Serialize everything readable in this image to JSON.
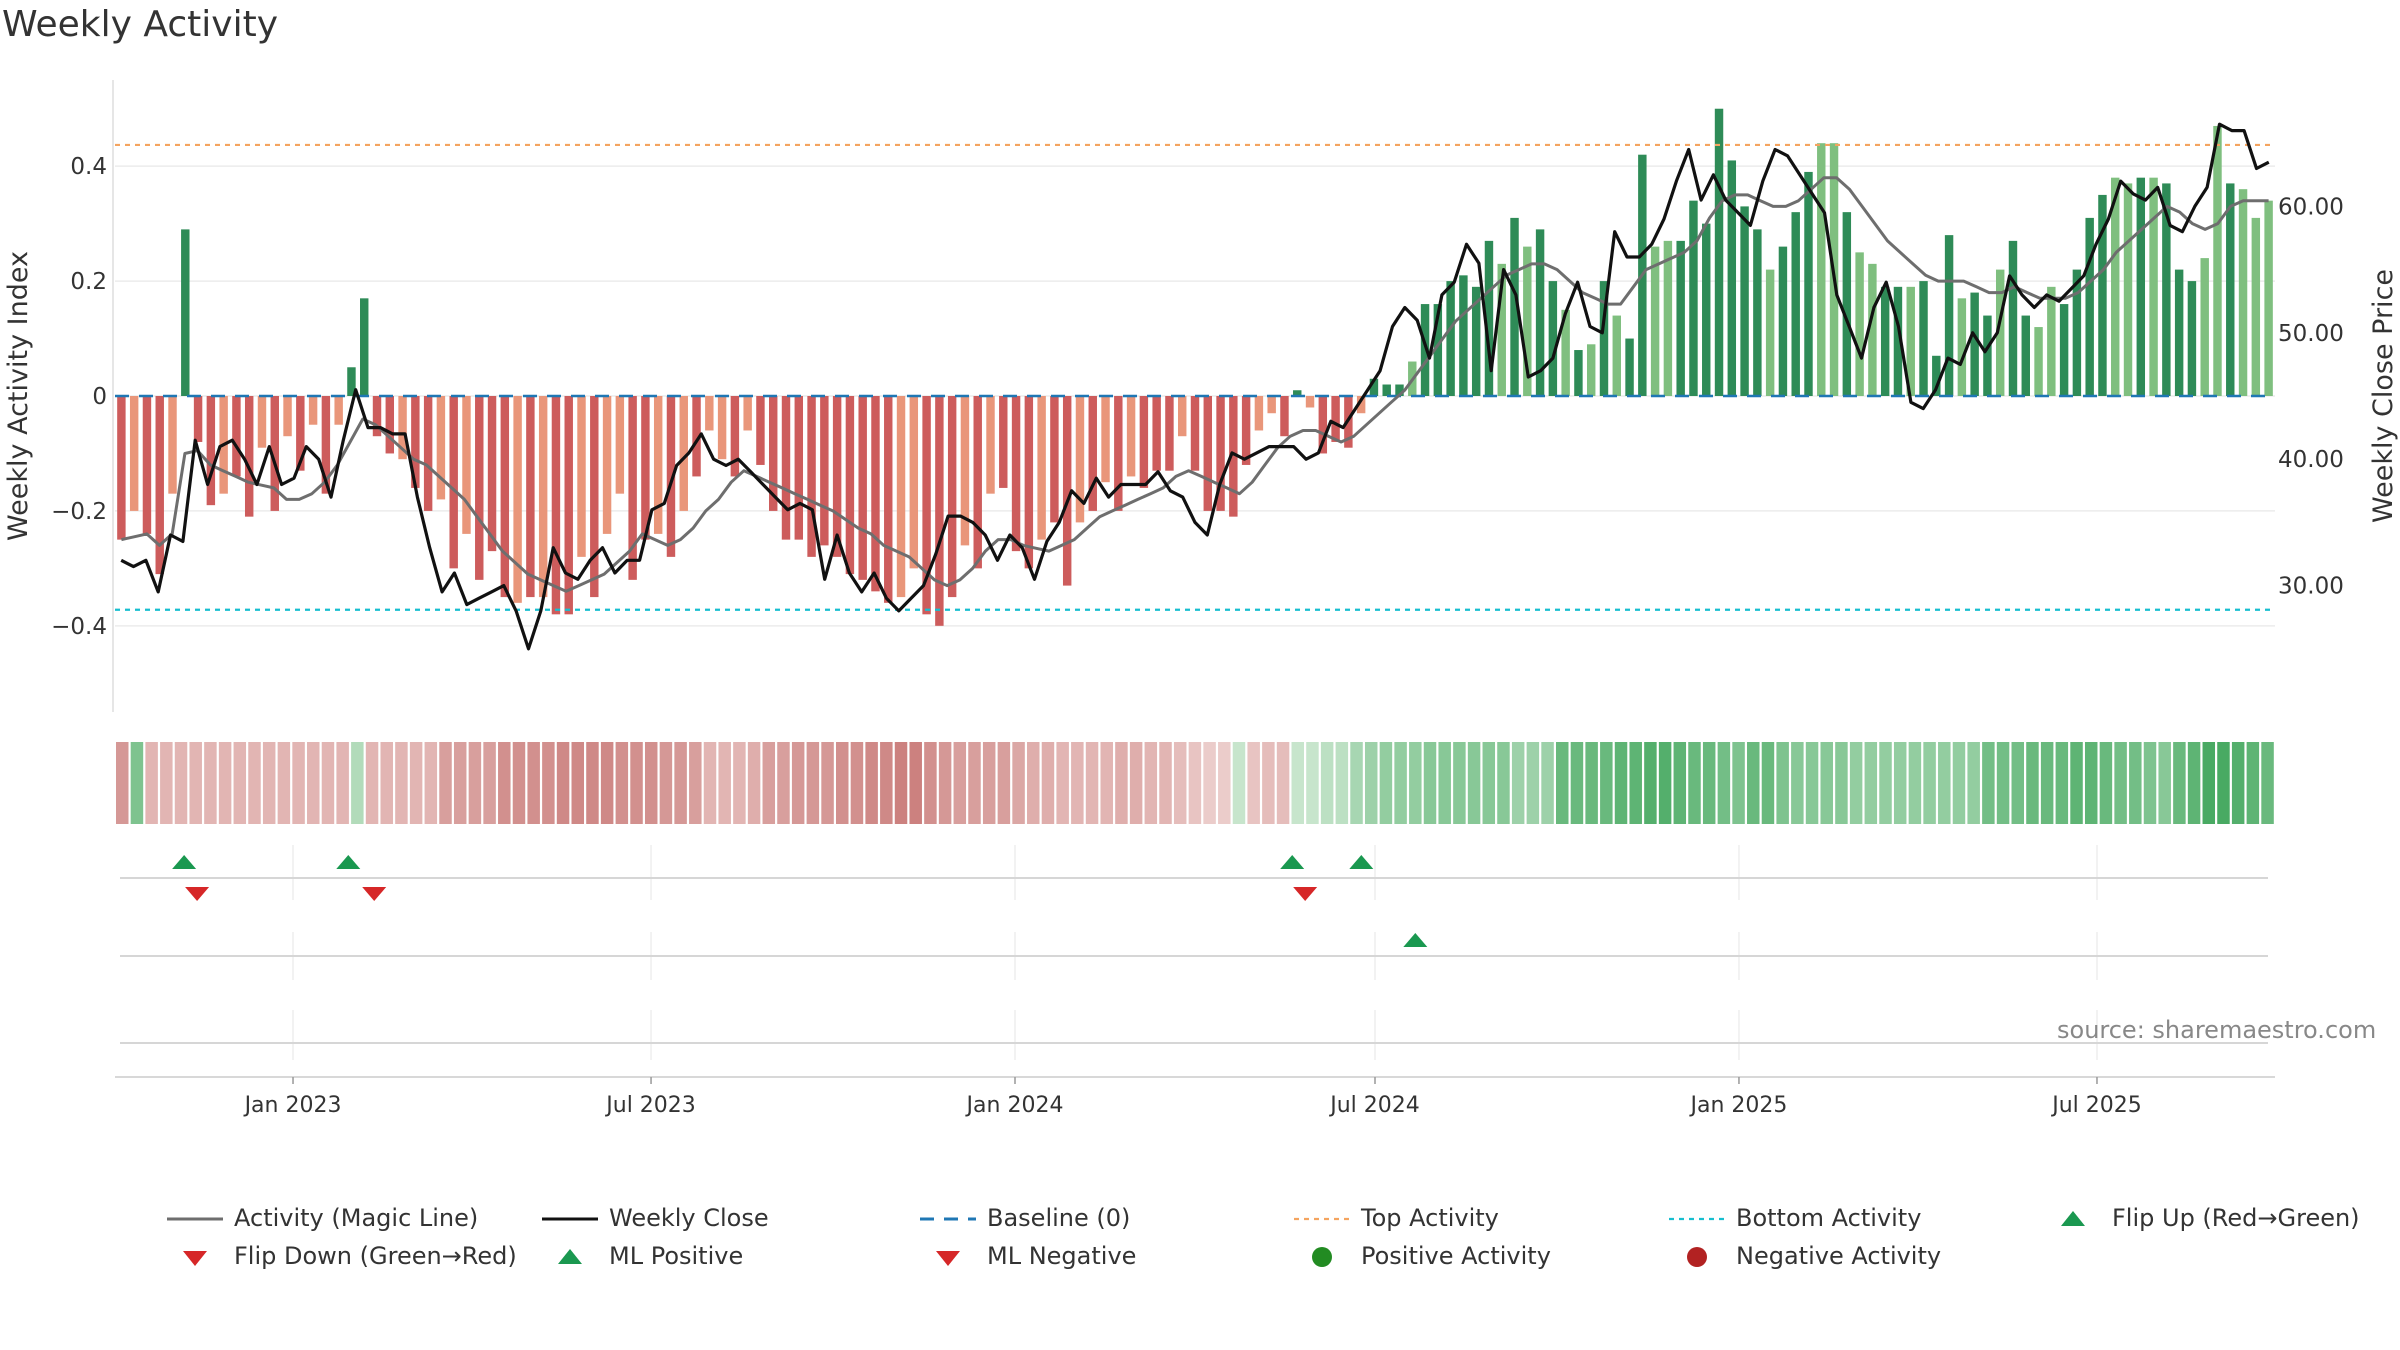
{
  "chart_data": {
    "type": "bar",
    "title": "Weekly Activity",
    "ylabel": "Weekly Activity Index",
    "y2label": "Weekly Close Price",
    "ylim": [
      -0.55,
      0.55
    ],
    "y2lim": [
      20.0,
      70.0
    ],
    "yticks": [
      {
        "value": 0.4,
        "label": "0.4"
      },
      {
        "value": 0.2,
        "label": "0.2"
      },
      {
        "value": 0,
        "label": "0"
      },
      {
        "value": -0.2,
        "label": "−0.2"
      },
      {
        "value": -0.4,
        "label": "−0.4"
      }
    ],
    "y2ticks": [
      {
        "value": 60,
        "label": "60.00"
      },
      {
        "value": 50,
        "label": "50.00"
      },
      {
        "value": 40,
        "label": "40.00"
      },
      {
        "value": 30,
        "label": "30.00"
      }
    ],
    "x_start": "2022-10-03",
    "x_end": "2025-09-29",
    "xticks": [
      {
        "date": "2023-01-01",
        "label": "Jan 2023"
      },
      {
        "date": "2023-07-01",
        "label": "Jul 2023"
      },
      {
        "date": "2024-01-01",
        "label": "Jan 2024"
      },
      {
        "date": "2024-07-01",
        "label": "Jul 2024"
      },
      {
        "date": "2025-01-01",
        "label": "Jan 2025"
      },
      {
        "date": "2025-07-01",
        "label": "Jul 2025"
      }
    ],
    "top_activity": 0.437,
    "bottom_activity": -0.372,
    "grid": true,
    "legend": "bottom",
    "colors": {
      "pos_strong": "#2e8b57",
      "pos_light": "#7fbf7f",
      "neg_strong": "#cd5c5c",
      "neg_light": "#e9967a",
      "magic_line": "#6e6e6e",
      "close": "#111111",
      "baseline": "#1f77b4",
      "top": "#f4a460",
      "bottom": "#17becf",
      "up_marker": "#1a9850",
      "down_marker": "#d62728"
    },
    "activity": [
      -0.25,
      -0.2,
      -0.24,
      -0.31,
      -0.17,
      0.29,
      -0.08,
      -0.19,
      -0.17,
      -0.14,
      -0.21,
      -0.09,
      -0.2,
      -0.07,
      -0.13,
      -0.05,
      -0.17,
      -0.05,
      0.05,
      0.17,
      -0.07,
      -0.1,
      -0.11,
      -0.16,
      -0.2,
      -0.18,
      -0.3,
      -0.24,
      -0.32,
      -0.27,
      -0.35,
      -0.36,
      -0.35,
      -0.35,
      -0.38,
      -0.38,
      -0.28,
      -0.35,
      -0.24,
      -0.17,
      -0.32,
      -0.25,
      -0.24,
      -0.28,
      -0.2,
      -0.14,
      -0.06,
      -0.11,
      -0.14,
      -0.06,
      -0.12,
      -0.2,
      -0.25,
      -0.25,
      -0.28,
      -0.26,
      -0.28,
      -0.31,
      -0.32,
      -0.34,
      -0.36,
      -0.35,
      -0.3,
      -0.38,
      -0.4,
      -0.35,
      -0.26,
      -0.3,
      -0.17,
      -0.16,
      -0.27,
      -0.3,
      -0.25,
      -0.22,
      -0.33,
      -0.22,
      -0.2,
      -0.15,
      -0.2,
      -0.14,
      -0.16,
      -0.13,
      -0.13,
      -0.07,
      -0.13,
      -0.2,
      -0.2,
      -0.21,
      -0.12,
      -0.06,
      -0.03,
      -0.07,
      0.01,
      -0.02,
      -0.1,
      -0.08,
      -0.09,
      -0.03,
      0.03,
      0.02,
      0.02,
      0.06,
      0.16,
      0.16,
      0.2,
      0.21,
      0.19,
      0.27,
      0.23,
      0.31,
      0.26,
      0.29,
      0.2,
      0.15,
      0.08,
      0.09,
      0.2,
      0.14,
      0.1,
      0.42,
      0.26,
      0.27,
      0.27,
      0.34,
      0.3,
      0.5,
      0.41,
      0.33,
      0.29,
      0.22,
      0.26,
      0.32,
      0.39,
      0.44,
      0.44,
      0.32,
      0.25,
      0.23,
      0.19,
      0.19,
      0.19,
      0.2,
      0.07,
      0.28,
      0.17,
      0.18,
      0.14,
      0.22,
      0.27,
      0.14,
      0.12,
      0.19,
      0.16,
      0.22,
      0.31,
      0.35,
      0.38,
      0.37,
      0.38,
      0.38,
      0.37,
      0.22,
      0.2,
      0.24,
      0.47,
      0.37,
      0.36,
      0.31,
      0.34
    ],
    "strong": [
      1,
      0,
      1,
      1,
      0,
      1,
      1,
      1,
      0,
      1,
      1,
      0,
      1,
      0,
      1,
      0,
      1,
      0,
      1,
      1,
      1,
      1,
      0,
      1,
      1,
      0,
      1,
      0,
      1,
      1,
      1,
      0,
      1,
      0,
      1,
      1,
      0,
      1,
      0,
      0,
      1,
      1,
      0,
      1,
      0,
      1,
      0,
      0,
      1,
      0,
      1,
      1,
      1,
      1,
      1,
      1,
      1,
      1,
      1,
      1,
      1,
      0,
      0,
      1,
      1,
      1,
      0,
      1,
      0,
      1,
      1,
      1,
      0,
      1,
      1,
      0,
      1,
      0,
      1,
      0,
      1,
      1,
      1,
      0,
      1,
      1,
      1,
      1,
      1,
      0,
      0,
      1,
      1,
      0,
      1,
      1,
      1,
      0,
      1,
      1,
      1,
      0,
      1,
      1,
      1,
      1,
      1,
      1,
      0,
      1,
      0,
      1,
      1,
      0,
      1,
      0,
      1,
      0,
      1,
      1,
      0,
      0,
      1,
      1,
      1,
      1,
      1,
      1,
      1,
      0,
      1,
      1,
      1,
      0,
      0,
      1,
      0,
      0,
      1,
      1,
      0,
      1,
      1,
      1,
      0,
      1,
      1,
      0,
      1,
      1,
      0,
      0,
      1,
      1,
      1,
      1,
      0,
      0,
      1,
      0,
      1,
      1,
      1,
      0,
      0,
      1
    ],
    "magic_line": [
      -0.25,
      -0.245,
      -0.24,
      -0.26,
      -0.24,
      -0.1,
      -0.095,
      -0.12,
      -0.13,
      -0.14,
      -0.15,
      -0.155,
      -0.16,
      -0.18,
      -0.18,
      -0.17,
      -0.15,
      -0.12,
      -0.08,
      -0.04,
      -0.05,
      -0.07,
      -0.09,
      -0.11,
      -0.12,
      -0.14,
      -0.16,
      -0.18,
      -0.21,
      -0.24,
      -0.27,
      -0.29,
      -0.31,
      -0.32,
      -0.33,
      -0.34,
      -0.33,
      -0.32,
      -0.31,
      -0.29,
      -0.27,
      -0.24,
      -0.25,
      -0.26,
      -0.25,
      -0.23,
      -0.2,
      -0.18,
      -0.15,
      -0.13,
      -0.14,
      -0.15,
      -0.16,
      -0.17,
      -0.18,
      -0.19,
      -0.2,
      -0.215,
      -0.23,
      -0.24,
      -0.26,
      -0.27,
      -0.28,
      -0.3,
      -0.32,
      -0.33,
      -0.32,
      -0.3,
      -0.27,
      -0.25,
      -0.25,
      -0.26,
      -0.265,
      -0.27,
      -0.26,
      -0.25,
      -0.23,
      -0.21,
      -0.2,
      -0.19,
      -0.18,
      -0.17,
      -0.16,
      -0.14,
      -0.13,
      -0.14,
      -0.15,
      -0.16,
      -0.17,
      -0.15,
      -0.12,
      -0.09,
      -0.07,
      -0.06,
      -0.06,
      -0.07,
      -0.08,
      -0.07,
      -0.05,
      -0.03,
      -0.01,
      0.01,
      0.04,
      0.07,
      0.1,
      0.13,
      0.15,
      0.17,
      0.19,
      0.21,
      0.22,
      0.23,
      0.23,
      0.22,
      0.2,
      0.18,
      0.17,
      0.16,
      0.16,
      0.19,
      0.22,
      0.23,
      0.24,
      0.25,
      0.27,
      0.31,
      0.34,
      0.35,
      0.35,
      0.34,
      0.33,
      0.33,
      0.34,
      0.36,
      0.38,
      0.38,
      0.36,
      0.33,
      0.3,
      0.27,
      0.25,
      0.23,
      0.21,
      0.2,
      0.2,
      0.2,
      0.19,
      0.18,
      0.18,
      0.19,
      0.18,
      0.17,
      0.17,
      0.17,
      0.18,
      0.2,
      0.22,
      0.25,
      0.27,
      0.29,
      0.31,
      0.33,
      0.32,
      0.3,
      0.29,
      0.3,
      0.33,
      0.34,
      0.34,
      0.34
    ],
    "weekly_close": [
      32.0,
      31.5,
      32.0,
      29.5,
      34.0,
      33.5,
      41.5,
      38.0,
      41.0,
      41.5,
      40.0,
      38.0,
      41.0,
      38.0,
      38.5,
      41.0,
      40.0,
      37.0,
      41.5,
      45.5,
      42.5,
      42.5,
      42.0,
      42.0,
      37.0,
      33.0,
      29.5,
      31.0,
      28.5,
      29.0,
      29.5,
      30.0,
      28.0,
      25.0,
      28.0,
      33.0,
      31.0,
      30.5,
      32.0,
      33.0,
      31.0,
      32.0,
      32.0,
      36.0,
      36.5,
      39.5,
      40.5,
      42.0,
      40.0,
      39.5,
      40.0,
      39.0,
      38.0,
      37.0,
      36.0,
      36.5,
      36.0,
      30.5,
      34.0,
      31.0,
      29.5,
      31.0,
      29.0,
      28.0,
      29.0,
      30.0,
      32.5,
      35.5,
      35.5,
      35.0,
      34.0,
      32.0,
      34.0,
      33.0,
      30.5,
      33.5,
      35.0,
      37.5,
      36.5,
      38.5,
      37.0,
      38.0,
      38.0,
      38.0,
      39.0,
      37.5,
      37.0,
      35.0,
      34.0,
      38.0,
      40.5,
      40.0,
      40.5,
      41.0,
      41.0,
      41.0,
      40.0,
      40.5,
      43.0,
      42.5,
      44.0,
      45.5,
      47.0,
      50.5,
      52.0,
      51.0,
      48.0,
      53.0,
      54.0,
      57.0,
      55.5,
      47.0,
      55.0,
      53.0,
      46.5,
      47.0,
      48.0,
      51.5,
      54.0,
      50.5,
      50.0,
      58.0,
      56.0,
      56.0,
      57.0,
      59.0,
      62.0,
      64.5,
      60.5,
      62.5,
      60.5,
      59.5,
      58.5,
      62.0,
      64.5,
      64.0,
      62.5,
      61.0,
      59.5,
      53.0,
      50.5,
      48.0,
      52.0,
      54.0,
      50.5,
      44.5,
      44.0,
      45.5,
      48.0,
      47.5,
      50.0,
      48.5,
      50.0,
      54.5,
      53.0,
      52.0,
      53.0,
      52.5,
      53.5,
      54.5,
      57.0,
      59.0,
      62.0,
      61.0,
      60.5,
      61.5,
      58.5,
      58.0,
      60.0,
      61.5,
      66.5,
      66.0,
      66.0,
      63.0,
      63.5
    ],
    "strip_level": [
      -0.5,
      0.5,
      -0.3,
      -0.3,
      -0.3,
      -0.3,
      -0.3,
      -0.3,
      -0.3,
      -0.3,
      -0.3,
      -0.3,
      -0.3,
      -0.3,
      -0.3,
      -0.3,
      0.25,
      -0.3,
      -0.3,
      -0.3,
      -0.3,
      -0.3,
      -0.45,
      -0.45,
      -0.45,
      -0.45,
      -0.55,
      -0.55,
      -0.55,
      -0.55,
      -0.6,
      -0.6,
      -0.6,
      -0.6,
      -0.55,
      -0.55,
      -0.55,
      -0.5,
      -0.5,
      -0.45,
      -0.3,
      -0.3,
      -0.3,
      -0.35,
      -0.45,
      -0.45,
      -0.5,
      -0.5,
      -0.5,
      -0.55,
      -0.55,
      -0.6,
      -0.6,
      -0.65,
      -0.65,
      -0.55,
      -0.5,
      -0.45,
      -0.45,
      -0.45,
      -0.45,
      -0.4,
      -0.35,
      -0.35,
      -0.3,
      -0.3,
      -0.3,
      -0.3,
      -0.35,
      -0.35,
      -0.3,
      -0.3,
      -0.25,
      -0.2,
      -0.15,
      -0.15,
      0.15,
      -0.2,
      -0.25,
      -0.25,
      0.15,
      0.15,
      0.2,
      0.2,
      0.3,
      0.35,
      0.4,
      0.4,
      0.4,
      0.45,
      0.45,
      0.45,
      0.45,
      0.45,
      0.45,
      0.35,
      0.35,
      0.35,
      0.6,
      0.6,
      0.6,
      0.6,
      0.65,
      0.65,
      0.7,
      0.7,
      0.65,
      0.6,
      0.6,
      0.55,
      0.5,
      0.6,
      0.6,
      0.5,
      0.45,
      0.45,
      0.45,
      0.45,
      0.4,
      0.4,
      0.4,
      0.4,
      0.4,
      0.4,
      0.4,
      0.4,
      0.4,
      0.55,
      0.55,
      0.55,
      0.6,
      0.6,
      0.6,
      0.65,
      0.65,
      0.6,
      0.55,
      0.55,
      0.5,
      0.45,
      0.6,
      0.65,
      0.75,
      0.75,
      0.7,
      0.65,
      0.6
    ],
    "marker_rows": [
      {
        "y": 878,
        "up": [
          0.032,
          0.108,
          0.545,
          0.577
        ],
        "down": []
      },
      {
        "y": 878,
        "up": [],
        "down": [
          0.038,
          0.12,
          0.551
        ]
      },
      {
        "y": 956,
        "up": [
          0.602
        ],
        "down": []
      },
      {
        "y": 1043,
        "up": [],
        "down": []
      }
    ]
  },
  "legend": [
    {
      "label": "Activity (Magic Line)",
      "kind": "line",
      "color": "#6e6e6e"
    },
    {
      "label": "Weekly Close",
      "kind": "line",
      "color": "#111111"
    },
    {
      "label": "Baseline (0)",
      "kind": "dash",
      "color": "#1f77b4"
    },
    {
      "label": "Top Activity",
      "kind": "dot",
      "color": "#f4a460"
    },
    {
      "label": "Bottom Activity",
      "kind": "dot",
      "color": "#17becf"
    },
    {
      "label": "Flip Up (Red→Green)",
      "kind": "up",
      "color": "#1a9850"
    },
    {
      "label": "Flip Down (Green→Red)",
      "kind": "down",
      "color": "#d62728"
    },
    {
      "label": "ML Positive",
      "kind": "up",
      "color": "#1a9850"
    },
    {
      "label": "ML Negative",
      "kind": "down",
      "color": "#d62728"
    },
    {
      "label": "Positive Activity",
      "kind": "circle",
      "color": "#228b22"
    },
    {
      "label": "Negative Activity",
      "kind": "circle",
      "color": "#b22222"
    }
  ],
  "source": "source: sharemaestro.com"
}
